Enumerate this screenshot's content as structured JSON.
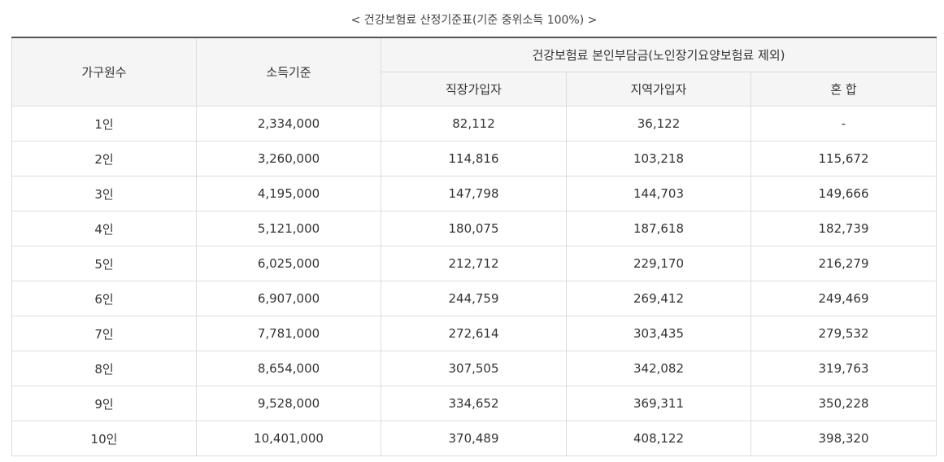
{
  "caption": "< 건강보험료 산정기준표(기준 중위소득 100%) >",
  "headers": {
    "household": "가구원수",
    "income": "소득기준",
    "premium_group": "건강보험료 본인부담금(노인장기요양보험료 제외)",
    "employee": "직장가입자",
    "regional": "지역가입자",
    "mixed": "혼 합"
  },
  "rows": [
    {
      "household": "1인",
      "income": "2,334,000",
      "employee": "82,112",
      "regional": "36,122",
      "mixed": "-"
    },
    {
      "household": "2인",
      "income": "3,260,000",
      "employee": "114,816",
      "regional": "103,218",
      "mixed": "115,672"
    },
    {
      "household": "3인",
      "income": "4,195,000",
      "employee": "147,798",
      "regional": "144,703",
      "mixed": "149,666"
    },
    {
      "household": "4인",
      "income": "5,121,000",
      "employee": "180,075",
      "regional": "187,618",
      "mixed": "182,739"
    },
    {
      "household": "5인",
      "income": "6,025,000",
      "employee": "212,712",
      "regional": "229,170",
      "mixed": "216,279"
    },
    {
      "household": "6인",
      "income": "6,907,000",
      "employee": "244,759",
      "regional": "269,412",
      "mixed": "249,469"
    },
    {
      "household": "7인",
      "income": "7,781,000",
      "employee": "272,614",
      "regional": "303,435",
      "mixed": "279,532"
    },
    {
      "household": "8인",
      "income": "8,654,000",
      "employee": "307,505",
      "regional": "342,082",
      "mixed": "319,763"
    },
    {
      "household": "9인",
      "income": "9,528,000",
      "employee": "334,652",
      "regional": "369,311",
      "mixed": "350,228"
    },
    {
      "household": "10인",
      "income": "10,401,000",
      "employee": "370,489",
      "regional": "408,122",
      "mixed": "398,320"
    }
  ]
}
